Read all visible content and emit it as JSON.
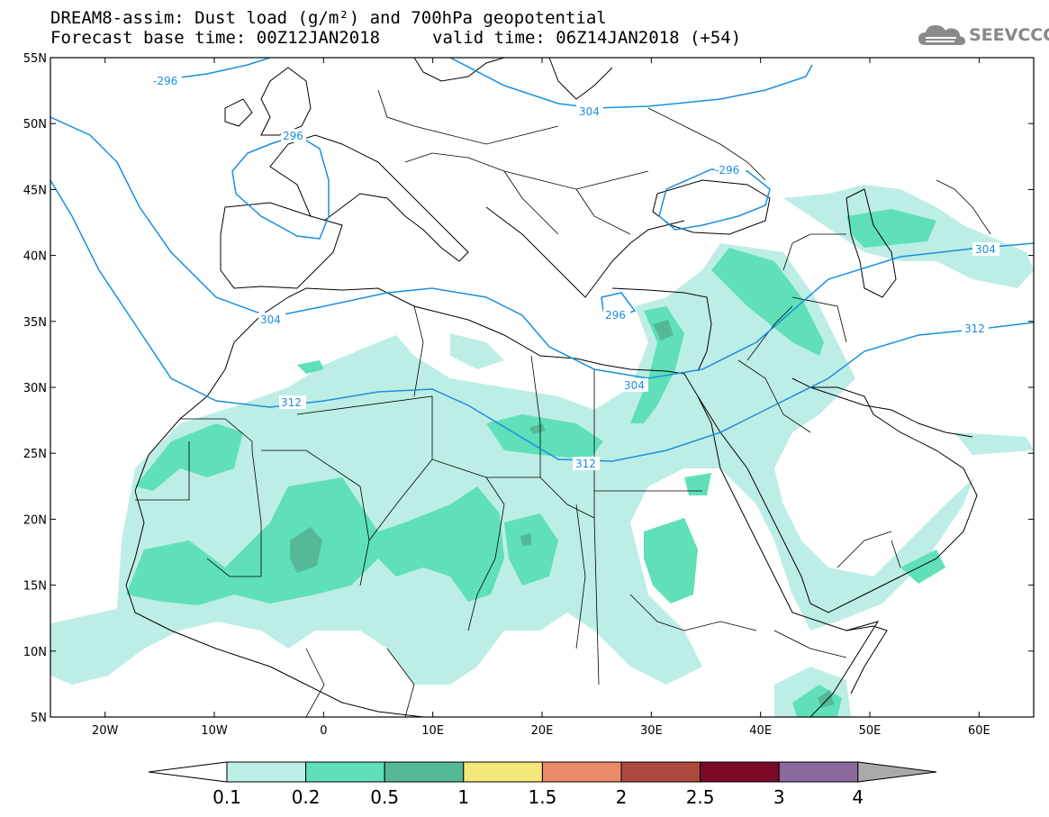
{
  "title": {
    "line1": "DREAM8-assim: Dust load (g/m²) and 700hPa geopotential",
    "line2_base": "Forecast base time: 00Z12JAN2018",
    "line2_valid": "valid time: 06Z14JAN2018 (+54)"
  },
  "logo": {
    "text": "SEEVCCC",
    "icon": "cloud-icon"
  },
  "map": {
    "lon_range": [
      -25,
      65
    ],
    "lat_range": [
      5,
      55
    ],
    "lat_ticks": [
      "55N",
      "50N",
      "45N",
      "40N",
      "35N",
      "30N",
      "25N",
      "20N",
      "15N",
      "10N",
      "5N"
    ],
    "lon_ticks": [
      "20W",
      "10W",
      "0",
      "10E",
      "20E",
      "30E",
      "40E",
      "50E",
      "60E"
    ],
    "contour_color": "#1a8fe0",
    "contour_labels": [
      "-296",
      "304",
      "296",
      "-296",
      "304",
      "312",
      "296",
      "304",
      "312",
      "304",
      "312"
    ]
  },
  "colorbar": {
    "labels": [
      "0.1",
      "0.2",
      "0.5",
      "1",
      "1.5",
      "2",
      "2.5",
      "3",
      "4"
    ],
    "colors": [
      "#bdeee6",
      "#5fe0b8",
      "#55b898",
      "#f5e87a",
      "#e98a68",
      "#ab4a3c",
      "#7a0a28",
      "#8a6a9e"
    ],
    "under_color": "#ffffff",
    "over_color": "#aaaaaa"
  }
}
